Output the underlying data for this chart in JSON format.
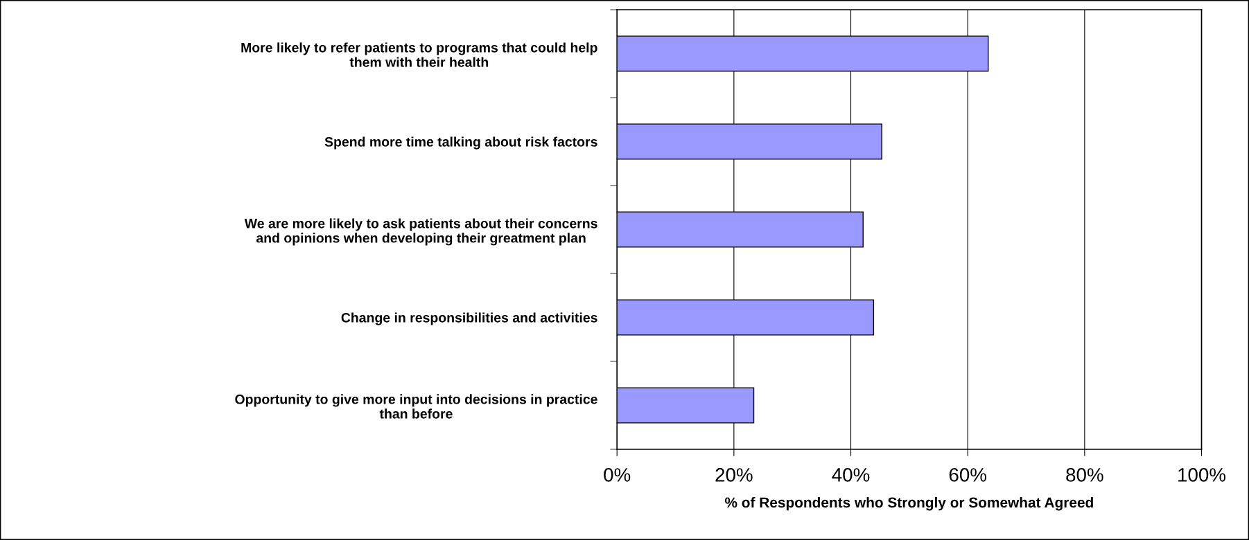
{
  "chart_data": {
    "type": "bar",
    "orientation": "horizontal",
    "categories": [
      "More likely to refer patients to programs that could help\nthem with their health",
      "Spend more time talking about risk factors",
      "We are more likely to ask patients about their concerns\nand opinions when developing their greatment plan",
      "Change in responsibilities and activities",
      "Opportunity to give more input into decisions in practice\nthan before"
    ],
    "values": [
      63.5,
      45.3,
      42.1,
      43.9,
      23.4
    ],
    "color": "#9999ff",
    "xlabel": "% of Respondents who Strongly or Somewhat Agreed",
    "xlim": [
      0,
      100
    ],
    "xticks": [
      {
        "value": 0,
        "label": "0%"
      },
      {
        "value": 20,
        "label": "20%"
      },
      {
        "value": 40,
        "label": "40%"
      },
      {
        "value": 60,
        "label": "60%"
      },
      {
        "value": 80,
        "label": "80%"
      },
      {
        "value": 100,
        "label": "100%"
      }
    ],
    "grid": "x"
  }
}
